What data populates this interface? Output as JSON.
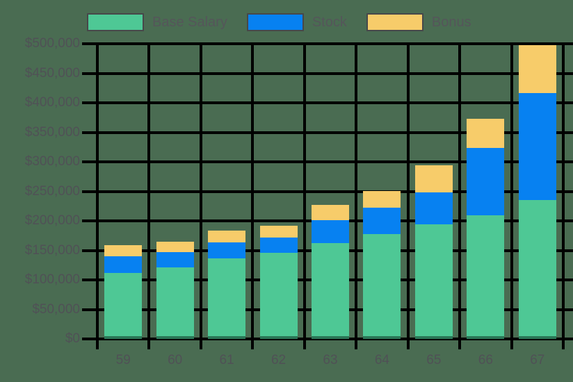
{
  "style": {
    "background": "#4a6c52",
    "gridline_color": "#000000",
    "axis_text_color": "#505156",
    "legend_text_color": "#55565a",
    "legend_border_color": "#47484a"
  },
  "legend": {
    "items": [
      {
        "label": "Base Salary",
        "color": "#4ec895"
      },
      {
        "label": "Stock",
        "color": "#0781f1"
      },
      {
        "label": "Bonus",
        "color": "#f7cc6a"
      }
    ]
  },
  "chart_data": {
    "type": "bar",
    "stacked": true,
    "title": "",
    "xlabel": "",
    "ylabel": "",
    "categories": [
      "59",
      "60",
      "61",
      "62",
      "63",
      "64",
      "65",
      "66",
      "67"
    ],
    "series": [
      {
        "name": "Base Salary",
        "color": "#4ec895",
        "values": [
          112000,
          121000,
          136000,
          146000,
          162000,
          178000,
          194000,
          210000,
          235000
        ]
      },
      {
        "name": "Stock",
        "color": "#0781f1",
        "values": [
          28000,
          26000,
          27000,
          26000,
          39000,
          44000,
          54000,
          114000,
          181000
        ]
      },
      {
        "name": "Bonus",
        "color": "#f7cc6a",
        "values": [
          19000,
          18000,
          20000,
          20000,
          26000,
          29000,
          46000,
          49000,
          82000
        ]
      }
    ],
    "totals": [
      159000,
      165000,
      183000,
      192000,
      227000,
      251000,
      294000,
      373000,
      498000
    ],
    "ylim": [
      0,
      500000
    ],
    "ytick_step": 50000,
    "ytick_labels": [
      "$0",
      "$50,000",
      "$100,000",
      "$150,000",
      "$200,000",
      "$250,000",
      "$300,000",
      "$350,000",
      "$400,000",
      "$450,000",
      "$500,000"
    ],
    "grid": "both",
    "legend_position": "top"
  }
}
